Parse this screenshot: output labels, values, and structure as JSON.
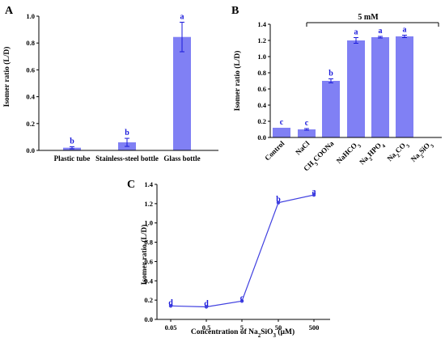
{
  "colors": {
    "bar": "#8080f4",
    "line": "#4040e0",
    "letters": "#1a1adb",
    "axis": "#000000"
  },
  "chart_data": [
    {
      "panel": "A",
      "type": "bar",
      "ylabel": "Isomer ratio (L/D)",
      "ylim": [
        0,
        1.0
      ],
      "yticks": [
        "0.0",
        "0.2",
        "0.4",
        "0.6",
        "0.8",
        "1.0"
      ],
      "categories": [
        "Plastic tube",
        "Stainless-steel bottle",
        "Glass bottle"
      ],
      "values": [
        0.02,
        0.06,
        0.845
      ],
      "errors": [
        0.008,
        0.03,
        0.11
      ],
      "letters": [
        "b",
        "b",
        "a"
      ]
    },
    {
      "panel": "B",
      "type": "bar",
      "ylabel": "Isomer ratio (L/D)",
      "ylim": [
        0,
        1.4
      ],
      "yticks": [
        "0.0",
        "0.2",
        "0.4",
        "0.6",
        "0.8",
        "1.0",
        "1.2",
        "1.4"
      ],
      "categories": [
        {
          "base": "Control",
          "sub": ""
        },
        {
          "base": "NaCl",
          "sub": ""
        },
        {
          "base": "CH",
          "sub": "3",
          "rest": "COONa"
        },
        {
          "base": "NaHCO",
          "sub": "3",
          "rest": ""
        },
        {
          "base": "Na",
          "sub": "2",
          "rest": "HPO",
          "sub2": "4"
        },
        {
          "base": "Na",
          "sub": "2",
          "rest": "CO",
          "sub2": "3"
        },
        {
          "base": "Na",
          "sub": "2",
          "rest": "SiO",
          "sub2": "3"
        }
      ],
      "values": [
        0.12,
        0.1,
        0.7,
        1.2,
        1.24,
        1.25,
        0
      ],
      "errors": [
        0.0,
        0.01,
        0.025,
        0.035,
        0.01,
        0.015,
        0
      ],
      "letters": [
        "c",
        "c",
        "b",
        "a",
        "a",
        "a",
        ""
      ],
      "annotation": "5 mM"
    },
    {
      "panel": "C",
      "type": "line",
      "ylabel": "Isomer ratio (L/D)",
      "xlabel_base": "Concentration of  Na",
      "xlabel_sub1": "2",
      "xlabel_mid": "SiO",
      "xlabel_sub2": "3",
      "xlabel_end": " (μM)",
      "ylim": [
        0,
        1.4
      ],
      "yticks": [
        "0.0",
        "0.2",
        "0.4",
        "0.6",
        "0.8",
        "1.0",
        "1.2",
        "1.4"
      ],
      "categories": [
        "0.05",
        "0.5",
        "5",
        "50",
        "500"
      ],
      "values": [
        0.14,
        0.13,
        0.19,
        1.21,
        1.29
      ],
      "letters": [
        "d",
        "d",
        "c",
        "b",
        "a"
      ]
    }
  ]
}
